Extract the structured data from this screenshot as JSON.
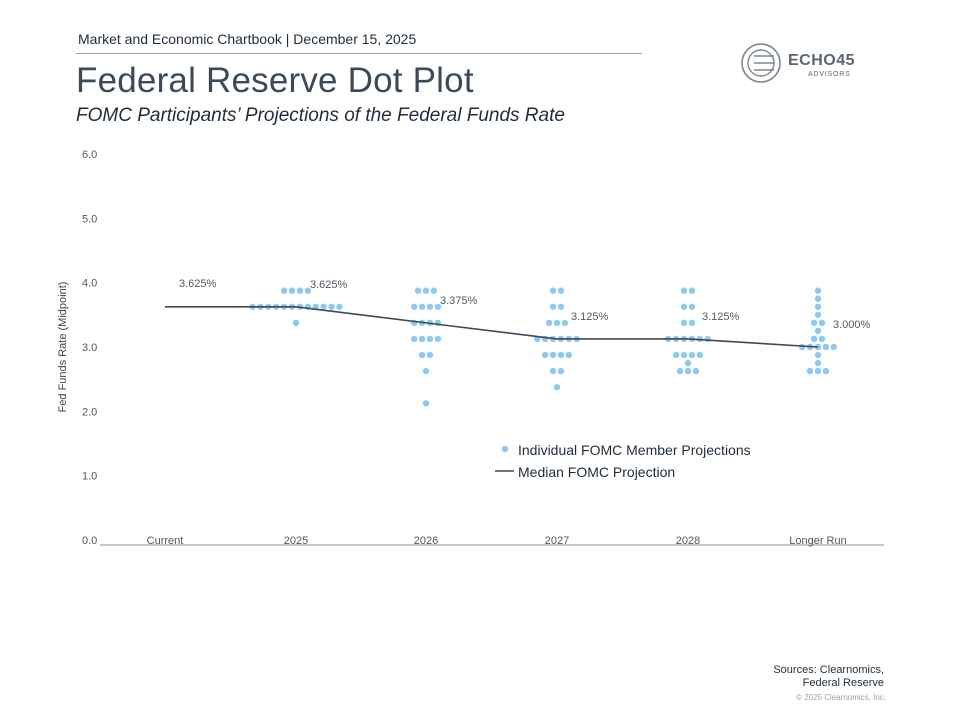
{
  "header": {
    "chartbook_line": "Market and Economic Chartbook | December 15, 2025",
    "title": "Federal Reserve Dot Plot",
    "subtitle": "FOMC Participants’ Projections of the Federal Funds Rate"
  },
  "logo": {
    "name": "ECHO45",
    "tagline": "ADVISORS"
  },
  "footer": {
    "sources_line1": "Sources: Clearnomics,",
    "sources_line2": "Federal Reserve",
    "copyright": "© 2025 Clearnomics, Inc."
  },
  "colors": {
    "dots": "#8ec9f0",
    "median_line": "#3b4a5a",
    "axis": "#8a939b"
  },
  "chart_data": {
    "type": "scatter",
    "title": "Federal Reserve Dot Plot",
    "ylabel": "Fed Funds Rate (Midpoint)",
    "xlabel": "",
    "ylim": [
      0,
      6
    ],
    "y_ticks": [
      "0.0",
      "1.0",
      "2.0",
      "3.0",
      "4.0",
      "5.0",
      "6.0"
    ],
    "categories": [
      "Current",
      "2025",
      "2026",
      "2027",
      "2028",
      "Longer Run"
    ],
    "legend": {
      "position": "center-right",
      "dots_label": "Individual FOMC Member Projections",
      "line_label": "Median FOMC Projection"
    },
    "series": [
      {
        "name": "Median FOMC Projection",
        "type": "line",
        "values": [
          3.625,
          3.625,
          3.375,
          3.125,
          3.125,
          3.0
        ],
        "labels": [
          "3.625%",
          "3.625%",
          "3.375%",
          "3.125%",
          "3.125%",
          "3.000%"
        ]
      },
      {
        "name": "Individual FOMC Member Projections",
        "type": "dots",
        "projections": [
          {
            "category": "2025",
            "groups": [
              {
                "y": 3.875,
                "count": 4
              },
              {
                "y": 3.625,
                "count": 12
              },
              {
                "y": 3.375,
                "count": 1
              }
            ]
          },
          {
            "category": "2026",
            "groups": [
              {
                "y": 3.875,
                "count": 3
              },
              {
                "y": 3.625,
                "count": 4
              },
              {
                "y": 3.375,
                "count": 4
              },
              {
                "y": 3.125,
                "count": 4
              },
              {
                "y": 2.875,
                "count": 2
              },
              {
                "y": 2.625,
                "count": 1
              },
              {
                "y": 2.125,
                "count": 1
              }
            ]
          },
          {
            "category": "2027",
            "groups": [
              {
                "y": 3.875,
                "count": 2
              },
              {
                "y": 3.625,
                "count": 2
              },
              {
                "y": 3.375,
                "count": 3
              },
              {
                "y": 3.125,
                "count": 6
              },
              {
                "y": 2.875,
                "count": 4
              },
              {
                "y": 2.625,
                "count": 2
              },
              {
                "y": 2.375,
                "count": 1
              }
            ]
          },
          {
            "category": "2028",
            "groups": [
              {
                "y": 3.875,
                "count": 2
              },
              {
                "y": 3.625,
                "count": 2
              },
              {
                "y": 3.375,
                "count": 2
              },
              {
                "y": 3.125,
                "count": 6
              },
              {
                "y": 2.875,
                "count": 4
              },
              {
                "y": 2.75,
                "count": 1
              },
              {
                "y": 2.625,
                "count": 3
              }
            ]
          },
          {
            "category": "Longer Run",
            "groups": [
              {
                "y": 3.875,
                "count": 1
              },
              {
                "y": 3.75,
                "count": 1
              },
              {
                "y": 3.625,
                "count": 1
              },
              {
                "y": 3.5,
                "count": 1
              },
              {
                "y": 3.375,
                "count": 2
              },
              {
                "y": 3.25,
                "count": 1
              },
              {
                "y": 3.125,
                "count": 2
              },
              {
                "y": 3.0,
                "count": 5
              },
              {
                "y": 2.875,
                "count": 1
              },
              {
                "y": 2.75,
                "count": 1
              },
              {
                "y": 2.625,
                "count": 3
              }
            ]
          }
        ]
      }
    ]
  }
}
